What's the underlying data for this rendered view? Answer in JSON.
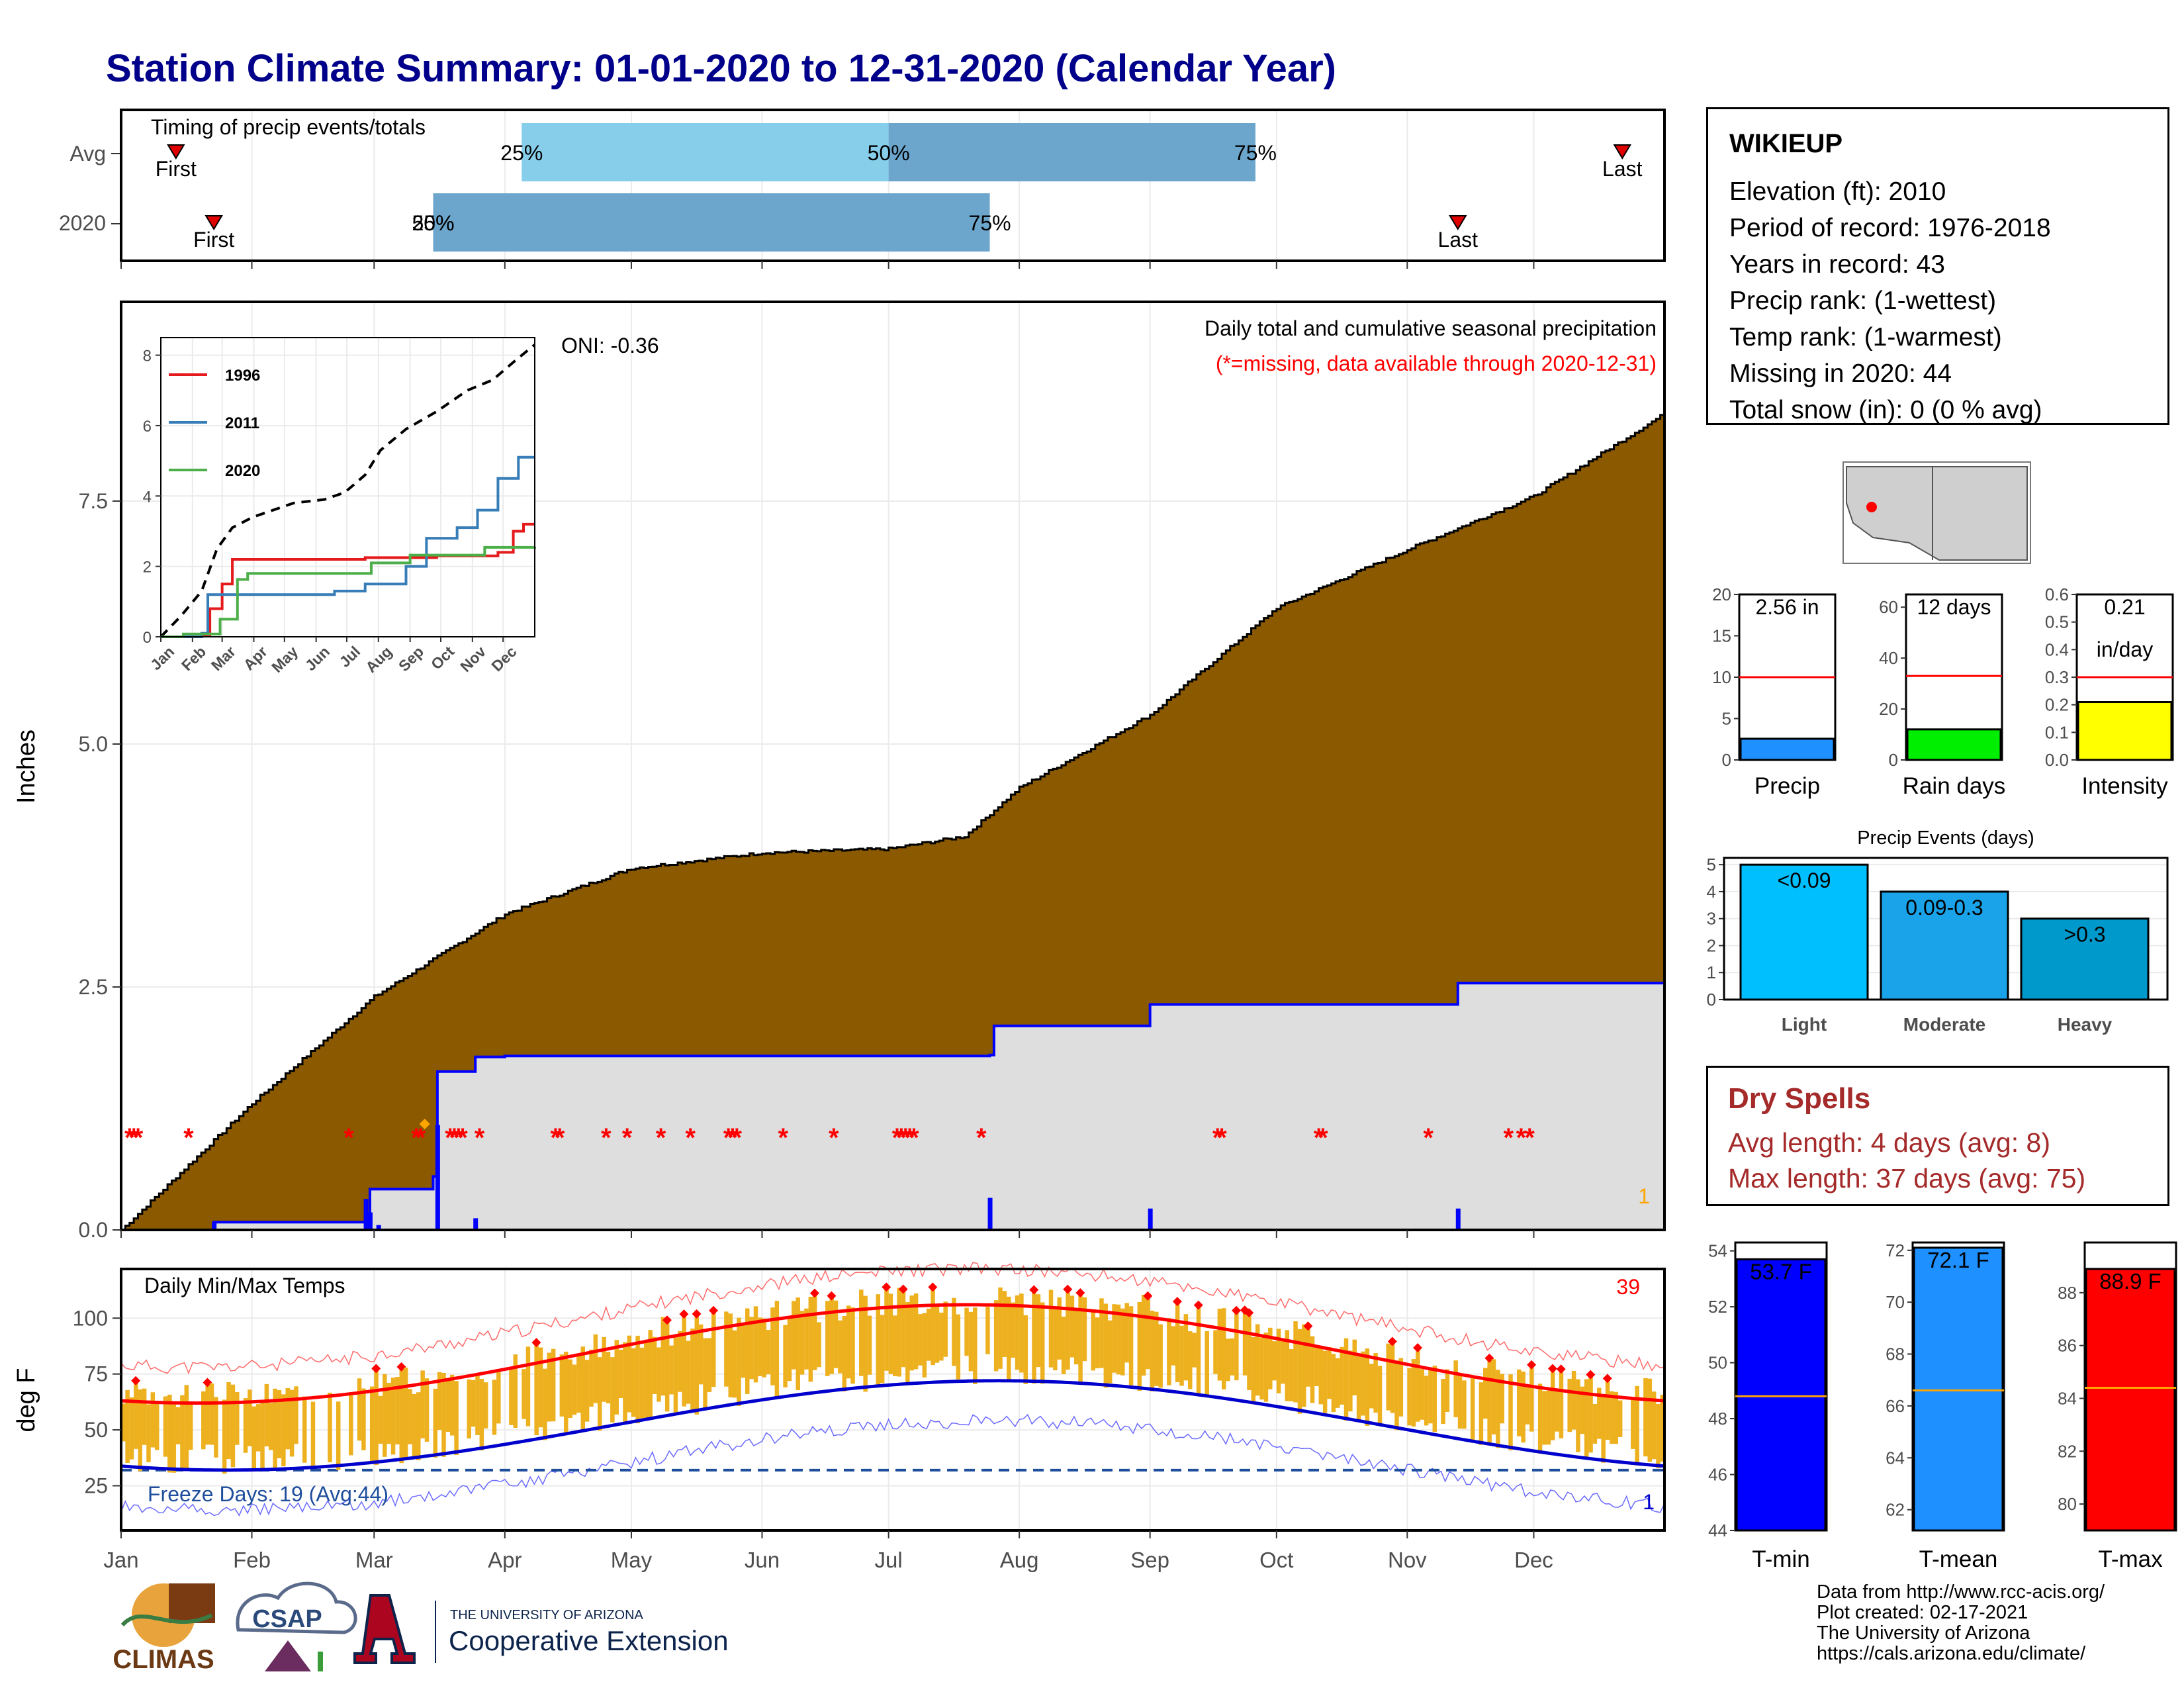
{
  "title": "Station Climate Summary: 01-01-2020 to 12-31-2020 (Calendar Year)",
  "months": [
    "Jan",
    "Feb",
    "Mar",
    "Apr",
    "May",
    "Jun",
    "Jul",
    "Aug",
    "Sep",
    "Oct",
    "Nov",
    "Dec"
  ],
  "timing": {
    "title": "Timing of precip events/totals",
    "rows": [
      "Avg",
      "2020"
    ],
    "first_label": "First",
    "last_label": "Last",
    "avg": {
      "first_day": 13,
      "last_day": 356,
      "p25": 95,
      "p50": 182,
      "p75": 269,
      "p25_label": "25%",
      "p50_label": "50%",
      "p75_label": "75%"
    },
    "y2020": {
      "first_day": 22,
      "last_day": 317,
      "p25": 74,
      "p50": 74,
      "p75": 206,
      "p25_label": "25%",
      "p50_label": "50%",
      "p75_label": "75%"
    }
  },
  "precip_panel": {
    "ylabel": "Inches",
    "yticks": [
      "0.0",
      "2.5",
      "5.0",
      "7.5"
    ],
    "header": "Daily total and cumulative seasonal precipitation",
    "missing_note": "(*=missing, data available through 2020-12-31)",
    "oni": "ONI: -0.36",
    "rank_marker": "1",
    "colors": {
      "avg_fill": "#8B5A00",
      "obs_fill": "#DEDEDE",
      "obs_line": "#0000FF",
      "missing": "#FF0000"
    }
  },
  "inset": {
    "yticks": [
      "0",
      "2",
      "4",
      "6",
      "8"
    ],
    "xticks": [
      "Jan",
      "Feb",
      "Mar",
      "Apr",
      "May",
      "Jun",
      "Jul",
      "Aug",
      "Sep",
      "Oct",
      "Nov",
      "Dec"
    ],
    "legend": [
      {
        "name": "1996",
        "color": "#E41A1C"
      },
      {
        "name": "2011",
        "color": "#377EB8"
      },
      {
        "name": "2020",
        "color": "#4DAF4A"
      }
    ]
  },
  "temp_panel": {
    "ylabel": "deg F",
    "title": "Daily Min/Max Temps",
    "record_count": "39",
    "freeze_label": "Freeze Days: 19 (Avg:44)",
    "low_record_count": "1",
    "yticks": [
      "25",
      "50",
      "75",
      "100"
    ],
    "colors": {
      "bars": "#EDB120",
      "max_norm": "#FF0000",
      "min_norm": "#0000CD",
      "freeze": "#1F4E9C"
    }
  },
  "station": {
    "name": "WIKIEUP",
    "lines": [
      "Elevation (ft): 2010",
      "Period of record: 1976-2018",
      "Years in record: 43",
      "Precip rank:  (1-wettest)",
      "Temp rank:  (1-warmest)",
      "Missing in 2020: 44",
      "Total snow (in): 0 (0 % avg)"
    ]
  },
  "mini_bars": [
    {
      "label": "Precip",
      "value_text": "2.56 in",
      "value": 2.56,
      "avg": 10,
      "ymax": 20,
      "yticks": [
        "0",
        "5",
        "10",
        "15",
        "20"
      ],
      "color": "#1E90FF"
    },
    {
      "label": "Rain days",
      "value_text": "12 days",
      "value": 12,
      "avg": 33,
      "ymax": 65,
      "yticks": [
        "0",
        "20",
        "40",
        "60"
      ],
      "color": "#00EE00"
    },
    {
      "label": "Intensity",
      "value_text": "0.21",
      "value_text2": "in/day",
      "value": 0.21,
      "avg": 0.3,
      "ymax": 0.6,
      "yticks": [
        "0.0",
        "0.1",
        "0.2",
        "0.3",
        "0.4",
        "0.5",
        "0.6"
      ],
      "color": "#FFFF00"
    }
  ],
  "events": {
    "title": "Precip Events (days)",
    "yticks": [
      "0",
      "1",
      "2",
      "3",
      "4",
      "5"
    ],
    "bars": [
      {
        "label": "Light",
        "range": "<0.09",
        "value": 5,
        "color": "#00BFFF"
      },
      {
        "label": "Moderate",
        "range": "0.09-0.3",
        "value": 4,
        "color": "#1AA3E8"
      },
      {
        "label": "Heavy",
        "range": ">0.3",
        "value": 3,
        "color": "#0099CC"
      }
    ]
  },
  "dry_spells": {
    "title": "Dry Spells",
    "avg": "Avg length: 4 days (avg: 8)",
    "max": "Max length: 37 days (avg: 75)"
  },
  "temp_bars": [
    {
      "label": "T-min",
      "value_text": "53.7 F",
      "value": 53.7,
      "avg": 48.8,
      "ymin": 44,
      "ymax": 54.3,
      "yticks": [
        "44",
        "46",
        "48",
        "50",
        "52",
        "54"
      ],
      "color": "#0000FF"
    },
    {
      "label": "T-mean",
      "value_text": "72.1 F",
      "value": 72.1,
      "avg": 66.6,
      "ymin": 61.2,
      "ymax": 72.3,
      "yticks": [
        "62",
        "64",
        "66",
        "68",
        "70",
        "72"
      ],
      "color": "#1E90FF"
    },
    {
      "label": "T-max",
      "value_text": "88.9 F",
      "value": 88.9,
      "avg": 84.4,
      "ymin": 79,
      "ymax": 89.9,
      "yticks": [
        "80",
        "82",
        "84",
        "86",
        "88"
      ],
      "color": "#FF0000"
    }
  ],
  "credits": [
    "Data from http://www.rcc-acis.org/",
    "Plot created: 02-17-2021",
    "The University of Arizona",
    "https://cals.arizona.edu/climate/"
  ],
  "logos": {
    "climas": "CLIMAS",
    "csap": "CSAP",
    "ua_top": "THE UNIVERSITY OF ARIZONA",
    "ua_bottom": "Cooperative Extension"
  }
}
